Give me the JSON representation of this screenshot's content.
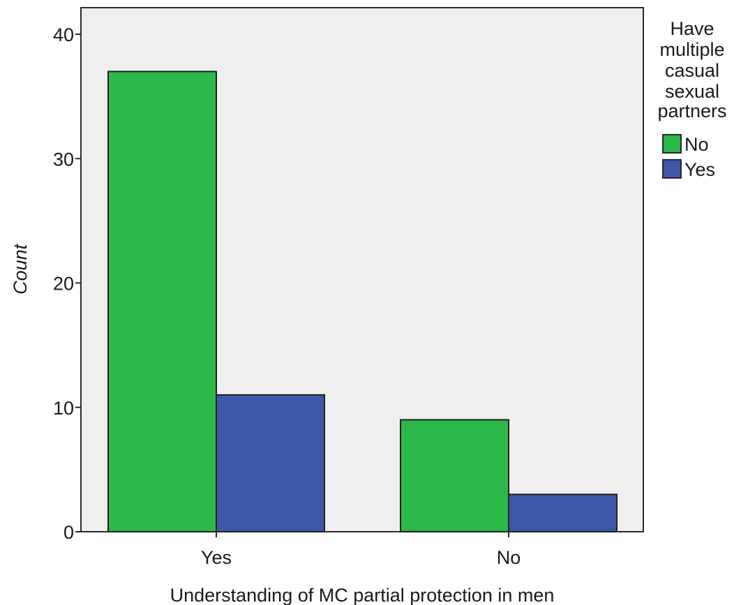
{
  "chart_data": {
    "type": "bar",
    "categories": [
      "Yes",
      "No"
    ],
    "series": [
      {
        "name": "No",
        "values": [
          37,
          9
        ],
        "color": "#2db84a"
      },
      {
        "name": "Yes",
        "values": [
          11,
          3
        ],
        "color": "#3c58a8"
      }
    ],
    "xlabel": "Understanding of MC partial protection in men",
    "ylabel": "Count",
    "ylim": [
      0,
      40
    ],
    "yticks": [
      0,
      10,
      20,
      30,
      40
    ],
    "grid": false,
    "plot_background": "#efefef",
    "legend": {
      "title_lines": [
        "Have",
        "multiple",
        "casual",
        "sexual",
        "partners"
      ],
      "position": "right"
    }
  }
}
